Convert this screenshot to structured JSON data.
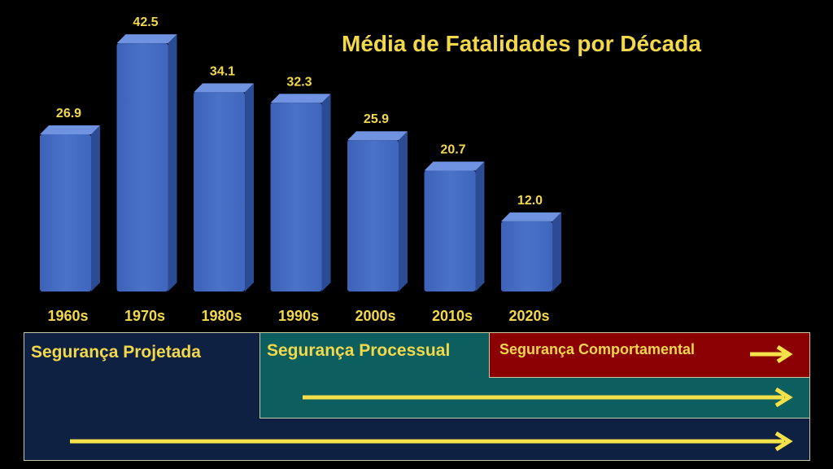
{
  "chart_data": {
    "type": "bar",
    "title": "Média de Fatalidades por Década",
    "categories": [
      "1960s",
      "1970s",
      "1980s",
      "1990s",
      "2000s",
      "2010s",
      "2020s"
    ],
    "values": [
      26.9,
      42.5,
      34.1,
      32.3,
      25.9,
      20.7,
      12.0
    ],
    "value_labels": [
      "26.9",
      "42.5",
      "34.1",
      "32.3",
      "25.9",
      "20.7",
      "12.0"
    ],
    "xlabel": "",
    "ylabel": "",
    "ylim": [
      0,
      46
    ],
    "grid": false,
    "legend": "none",
    "colors": {
      "bar_front": "#4a72c9",
      "bar_side": "#2b4c94",
      "bar_top": "#6f93e0",
      "text": "#f2d84a"
    }
  },
  "bands": {
    "projetada": {
      "label": "Segurança Projetada",
      "color": "#0e2142",
      "text_color": "#f2d84a"
    },
    "processual": {
      "label": "Segurança Processual",
      "color": "#0d5e5e",
      "text_color": "#f2d84a"
    },
    "comportamental": {
      "label": "Segurança Comportamental",
      "color": "#8b0000",
      "text_color": "#f2d84a"
    },
    "arrow_color": "#f5e14a"
  }
}
